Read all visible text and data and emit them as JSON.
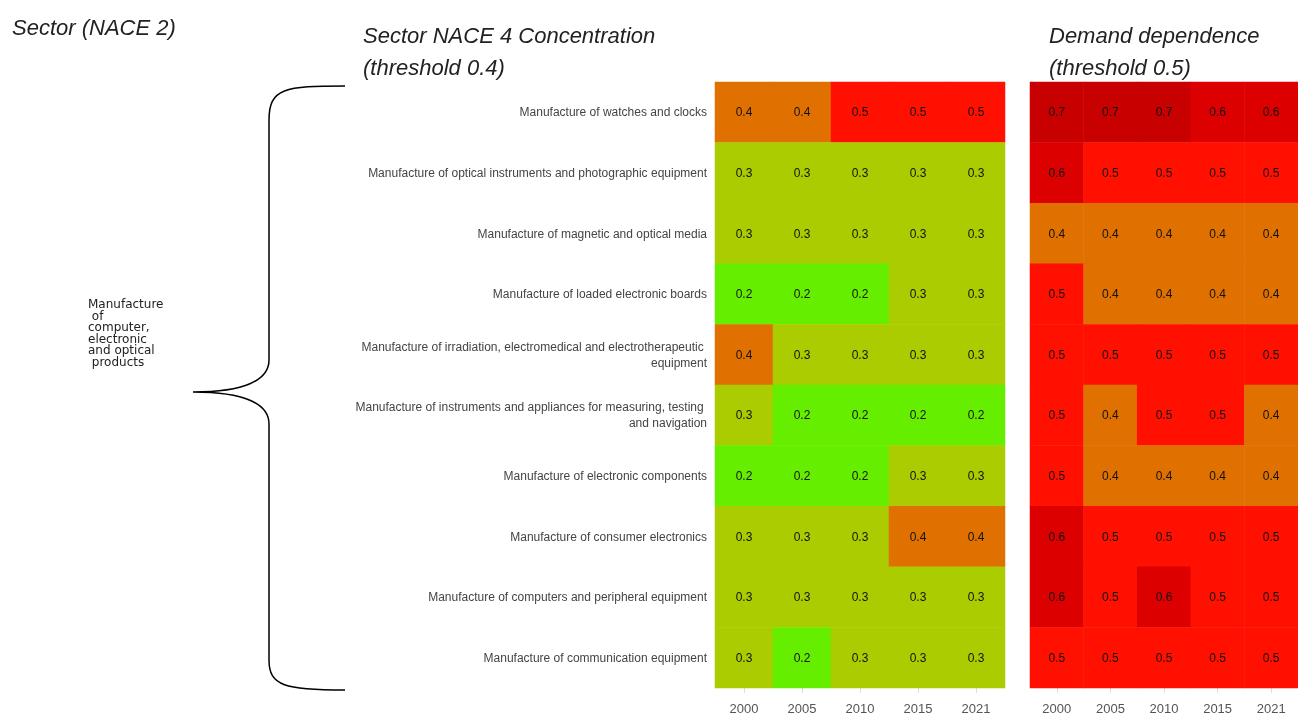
{
  "chart_data": [
    {
      "type": "heatmap",
      "title": "Sector NACE 4 Concentration (threshold 0.4)",
      "annotations": [
        "Sector (NACE 2)",
        "Manufacture of computer, electronic and optical products"
      ],
      "categories": [
        "2000",
        "2005",
        "2010",
        "2015",
        "2021"
      ],
      "y_categories": [
        "Manufacture of watches and clocks",
        "Manufacture of optical instruments and photographic equipment",
        "Manufacture of magnetic and optical media",
        "Manufacture of loaded electronic boards",
        "Manufacture of irradiation, electromedical and electrotherapeutic equipment",
        "Manufacture of instruments and appliances for measuring, testing and navigation",
        "Manufacture of electronic components",
        "Manufacture of consumer electronics",
        "Manufacture of computers and peripheral equipment",
        "Manufacture of communication equipment"
      ],
      "cells": [
        [
          0.4,
          0.4,
          0.5,
          0.5,
          0.5
        ],
        [
          0.3,
          0.3,
          0.3,
          0.3,
          0.3
        ],
        [
          0.3,
          0.3,
          0.3,
          0.3,
          0.3
        ],
        [
          0.2,
          0.2,
          0.2,
          0.3,
          0.3
        ],
        [
          0.4,
          0.3,
          0.3,
          0.3,
          0.3
        ],
        [
          0.3,
          0.2,
          0.2,
          0.2,
          0.2
        ],
        [
          0.2,
          0.2,
          0.2,
          0.3,
          0.3
        ],
        [
          0.3,
          0.3,
          0.3,
          0.4,
          0.4
        ],
        [
          0.3,
          0.3,
          0.3,
          0.3,
          0.3
        ],
        [
          0.3,
          0.2,
          0.3,
          0.3,
          0.3
        ]
      ],
      "data_labels": true
    },
    {
      "type": "heatmap",
      "title": "Demand dependence (threshold 0.5)",
      "categories": [
        "2000",
        "2005",
        "2010",
        "2015",
        "2021"
      ],
      "y_categories": [
        null,
        null,
        null,
        null,
        null,
        null,
        null,
        null,
        null,
        null
      ],
      "cells": [
        [
          0.7,
          0.7,
          0.7,
          0.6,
          0.6
        ],
        [
          0.6,
          0.5,
          0.5,
          0.5,
          0.5
        ],
        [
          0.4,
          0.4,
          0.4,
          0.4,
          0.4
        ],
        [
          0.5,
          0.4,
          0.4,
          0.4,
          0.4
        ],
        [
          0.5,
          0.5,
          0.5,
          0.5,
          0.5
        ],
        [
          0.5,
          0.4,
          0.5,
          0.5,
          0.4
        ],
        [
          0.5,
          0.4,
          0.4,
          0.4,
          0.4
        ],
        [
          0.6,
          0.5,
          0.5,
          0.5,
          0.5
        ],
        [
          0.6,
          0.5,
          0.6,
          0.5,
          0.5
        ],
        [
          0.5,
          0.5,
          0.5,
          0.5,
          0.5
        ]
      ],
      "data_labels": true
    }
  ]
}
